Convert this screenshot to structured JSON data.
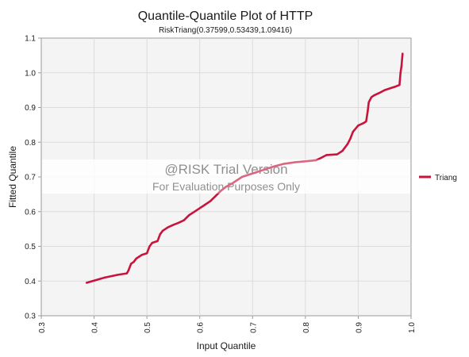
{
  "chart_data": {
    "type": "line",
    "title": "Quantile-Quantile Plot of HTTP",
    "subtitle": "RiskTriang(0.37599,0.53439,1.09416)",
    "xlabel": "Input Quantile",
    "ylabel": "Fitted Quantile",
    "xlim": [
      0.3,
      1.0
    ],
    "ylim": [
      0.3,
      1.1
    ],
    "xticks": [
      "0.3",
      "0.4",
      "0.5",
      "0.6",
      "0.7",
      "0.8",
      "0.9",
      "1.0"
    ],
    "yticks": [
      "0.3",
      "0.4",
      "0.5",
      "0.6",
      "0.7",
      "0.8",
      "0.9",
      "1.0",
      "1.1"
    ],
    "grid": true,
    "legend_position": "right",
    "series": [
      {
        "name": "Triang",
        "color": "#c8143c",
        "x": [
          0.386,
          0.42,
          0.445,
          0.462,
          0.465,
          0.47,
          0.475,
          0.48,
          0.485,
          0.49,
          0.5,
          0.505,
          0.51,
          0.52,
          0.525,
          0.53,
          0.54,
          0.55,
          0.56,
          0.57,
          0.58,
          0.59,
          0.6,
          0.61,
          0.62,
          0.63,
          0.64,
          0.65,
          0.66,
          0.68,
          0.7,
          0.72,
          0.74,
          0.76,
          0.78,
          0.8,
          0.82,
          0.83,
          0.84,
          0.86,
          0.87,
          0.875,
          0.88,
          0.885,
          0.89,
          0.9,
          0.91,
          0.915,
          0.918,
          0.92,
          0.925,
          0.93,
          0.94,
          0.95,
          0.96,
          0.97,
          0.978,
          0.98,
          0.982,
          0.983,
          0.984
        ],
        "y": [
          0.395,
          0.41,
          0.418,
          0.422,
          0.43,
          0.45,
          0.455,
          0.465,
          0.47,
          0.475,
          0.48,
          0.5,
          0.51,
          0.515,
          0.535,
          0.545,
          0.555,
          0.562,
          0.568,
          0.575,
          0.59,
          0.6,
          0.61,
          0.62,
          0.63,
          0.645,
          0.66,
          0.672,
          0.68,
          0.7,
          0.71,
          0.72,
          0.73,
          0.738,
          0.742,
          0.745,
          0.748,
          0.755,
          0.763,
          0.765,
          0.775,
          0.785,
          0.795,
          0.81,
          0.83,
          0.848,
          0.855,
          0.86,
          0.89,
          0.915,
          0.93,
          0.935,
          0.942,
          0.95,
          0.955,
          0.96,
          0.965,
          1.0,
          1.02,
          1.04,
          1.055
        ]
      }
    ]
  },
  "watermark": {
    "title": "@RISK Trial Version",
    "subtitle": "For Evaluation Purposes Only"
  }
}
